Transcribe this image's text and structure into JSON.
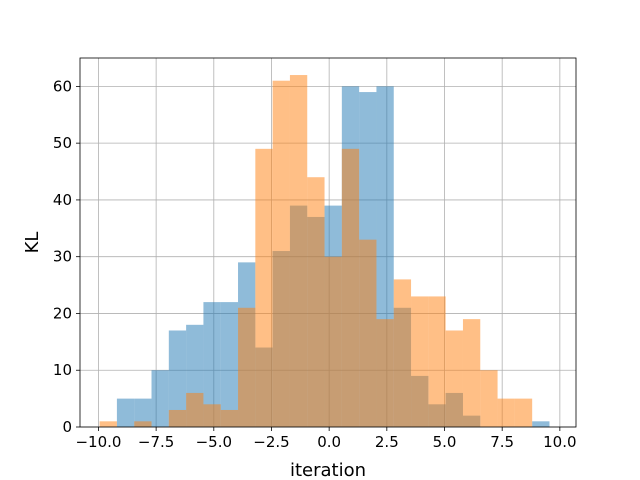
{
  "chart_data": {
    "type": "bar",
    "subtype": "overlaid-histogram",
    "xlabel": "iteration",
    "ylabel": "KL",
    "xlim": [
      -10.8,
      10.7
    ],
    "ylim": [
      0,
      65
    ],
    "xticks": [
      -10.0,
      -7.5,
      -5.0,
      -2.5,
      0.0,
      2.5,
      5.0,
      7.5,
      10.0
    ],
    "xtick_labels": [
      "−10.0",
      "−7.5",
      "−5.0",
      "−2.5",
      "0.0",
      "2.5",
      "5.0",
      "7.5",
      "10.0"
    ],
    "yticks": [
      0,
      10,
      20,
      30,
      40,
      50,
      60
    ],
    "ytick_labels": [
      "0",
      "10",
      "20",
      "30",
      "40",
      "50",
      "60"
    ],
    "grid": true,
    "series": [
      {
        "color": "#1f77b4",
        "alpha": 0.5,
        "bin_edges": [
          -9.2,
          -8.45,
          -7.7,
          -6.95,
          -6.2,
          -5.45,
          -4.7,
          -3.95,
          -3.2,
          -2.45,
          -1.7,
          -0.95,
          -0.2,
          0.55,
          1.3,
          2.05,
          2.8,
          3.55,
          4.3,
          5.05,
          5.8,
          6.55,
          7.3,
          8.05,
          8.8,
          9.55
        ],
        "values": [
          5,
          5,
          10,
          17,
          18,
          22,
          22,
          29,
          14,
          31,
          39,
          37,
          39,
          60,
          59,
          60,
          21,
          9,
          4,
          6,
          2,
          0,
          0,
          0,
          1
        ]
      },
      {
        "color": "#ff7f0e",
        "alpha": 0.5,
        "bin_edges": [
          -9.95,
          -9.2,
          -8.45,
          -7.7,
          -6.95,
          -6.2,
          -5.45,
          -4.7,
          -3.95,
          -3.2,
          -2.45,
          -1.7,
          -0.95,
          -0.2,
          0.55,
          1.3,
          2.05,
          2.8,
          3.55,
          4.3,
          5.05,
          5.8,
          6.55,
          7.3,
          8.05,
          8.8
        ],
        "values": [
          1,
          0,
          1,
          0,
          3,
          6,
          4,
          3,
          21,
          49,
          61,
          62,
          44,
          30,
          49,
          33,
          19,
          26,
          23,
          23,
          17,
          19,
          10,
          5,
          5
        ]
      }
    ]
  }
}
